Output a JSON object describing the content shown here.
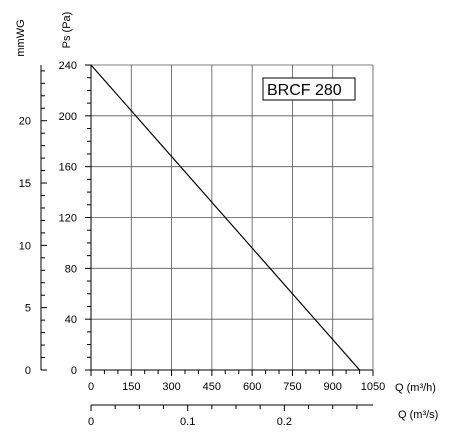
{
  "chart_data": {
    "type": "line",
    "x_unit_primary": "m³/h",
    "x": [
      0,
      1000
    ],
    "y": [
      240,
      0
    ],
    "series": [
      {
        "name": "BRCF 280",
        "x": [
          0,
          1000
        ],
        "y": [
          240,
          0
        ]
      }
    ],
    "legend_label": "BRCF 280",
    "legend_placement": "top-right",
    "grid": true,
    "y_axis_pa": {
      "label": "Ps (Pa)",
      "range": [
        0,
        240
      ],
      "ticks": [
        "0",
        "40",
        "80",
        "120",
        "160",
        "200",
        "240"
      ],
      "tick_values": [
        0,
        40,
        80,
        120,
        160,
        200,
        240
      ],
      "minor_step": 10
    },
    "y_axis_mmwg": {
      "label": "mmWG",
      "range": [
        0,
        24.47
      ],
      "ticks": [
        "0",
        "5",
        "10",
        "15",
        "20"
      ],
      "tick_values": [
        0,
        5,
        10,
        15,
        20
      ],
      "minor_step": 1
    },
    "x_axis_m3h": {
      "label": "Q (m³/h)",
      "range": [
        0,
        1050
      ],
      "ticks": [
        "0",
        "150",
        "300",
        "450",
        "600",
        "750",
        "900",
        "1050"
      ],
      "tick_values": [
        0,
        150,
        300,
        450,
        600,
        750,
        900,
        1050
      ],
      "minor_step": 50
    },
    "x_axis_m3s": {
      "label": "Q (m³/s)",
      "range": [
        0,
        0.2917
      ],
      "ticks": [
        "0",
        "0.1",
        "0.2"
      ],
      "tick_values": [
        0,
        0.1,
        0.2
      ],
      "minor_step": 0.025
    }
  }
}
